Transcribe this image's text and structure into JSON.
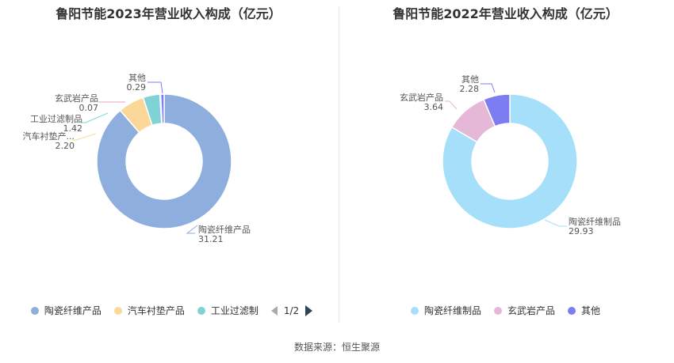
{
  "chart_data": [
    {
      "type": "pie",
      "title": "鲁阳节能2023年营业收入构成（亿元）",
      "slices": [
        {
          "name": "陶瓷纤维产品",
          "label": "陶瓷纤维产品",
          "value": 31.21,
          "value_label": "31.21",
          "color": "#8eaedd"
        },
        {
          "name": "汽车衬垫产品",
          "label": "汽车衬垫产...",
          "value": 2.2,
          "value_label": "2.20",
          "color": "#fbd89a"
        },
        {
          "name": "工业过滤制品",
          "label": "工业过滤制品",
          "value": 1.42,
          "value_label": "1.42",
          "color": "#7fd3d6"
        },
        {
          "name": "玄武岩产品",
          "label": "玄武岩产品",
          "value": 0.07,
          "value_label": "0.07",
          "color": "#e6a1c4"
        },
        {
          "name": "其他",
          "label": "其他",
          "value": 0.29,
          "value_label": "0.29",
          "color": "#7b7df0"
        }
      ],
      "legend": {
        "position": "bottom",
        "items": [
          "陶瓷纤维产品",
          "汽车衬垫产品",
          "工业过滤制"
        ],
        "colors": [
          "#8eaedd",
          "#fbd89a",
          "#7fd3d6"
        ],
        "pager": "1/2"
      }
    },
    {
      "type": "pie",
      "title": "鲁阳节能2022年营业收入构成（亿元）",
      "slices": [
        {
          "name": "陶瓷纤维制品",
          "label": "陶瓷纤维制品",
          "value": 29.93,
          "value_label": "29.93",
          "color": "#a6dff9"
        },
        {
          "name": "玄武岩产品",
          "label": "玄武岩产品",
          "value": 3.64,
          "value_label": "3.64",
          "color": "#e6b8d8"
        },
        {
          "name": "其他",
          "label": "其他",
          "value": 2.28,
          "value_label": "2.28",
          "color": "#7b7df0"
        }
      ],
      "legend": {
        "position": "bottom",
        "items": [
          "陶瓷纤维制品",
          "玄武岩产品",
          "其他"
        ],
        "colors": [
          "#a6dff9",
          "#e6b8d8",
          "#7b7df0"
        ]
      }
    }
  ],
  "footer": {
    "source": "数据来源：恒生聚源"
  }
}
